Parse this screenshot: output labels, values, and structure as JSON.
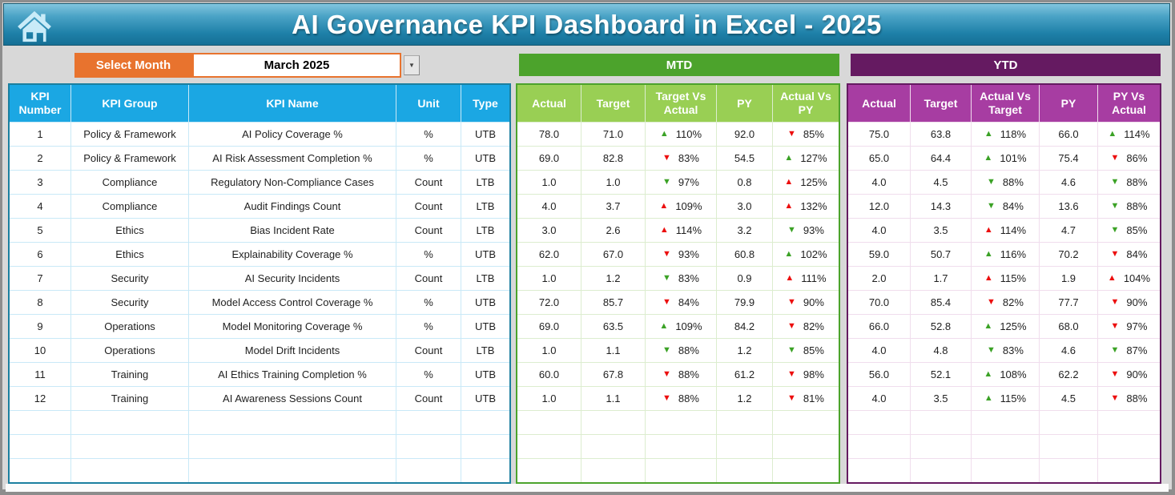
{
  "header": {
    "title": "AI Governance KPI Dashboard in Excel - 2025"
  },
  "controls": {
    "select_month_label": "Select Month",
    "selected_month": "March 2025",
    "dropdown_glyph": "▼"
  },
  "sections": {
    "mtd_label": "MTD",
    "ytd_label": "YTD"
  },
  "kpi_table": {
    "headers": [
      "KPI Number",
      "KPI Group",
      "KPI Name",
      "Unit",
      "Type"
    ]
  },
  "mtd_table": {
    "headers": [
      "Actual",
      "Target",
      "Target Vs Actual",
      "PY",
      "Actual Vs PY"
    ]
  },
  "ytd_table": {
    "headers": [
      "Actual",
      "Target",
      "Actual Vs Target",
      "PY",
      "PY Vs Actual"
    ]
  },
  "empty_row_count": 3,
  "rows": [
    {
      "number": "1",
      "group": "Policy & Framework",
      "name": "AI Policy Coverage %",
      "unit": "%",
      "type": "UTB",
      "mtd": {
        "actual": "78.0",
        "target": "71.0",
        "target_vs_actual": {
          "dir": "up",
          "color": "green",
          "value": "110%"
        },
        "py": "92.0",
        "actual_vs_py": {
          "dir": "down",
          "color": "red",
          "value": "85%"
        }
      },
      "ytd": {
        "actual": "75.0",
        "target": "63.8",
        "actual_vs_target": {
          "dir": "up",
          "color": "green",
          "value": "118%"
        },
        "py": "66.0",
        "py_vs_actual": {
          "dir": "up",
          "color": "green",
          "value": "114%"
        }
      }
    },
    {
      "number": "2",
      "group": "Policy & Framework",
      "name": "AI Risk Assessment Completion %",
      "unit": "%",
      "type": "UTB",
      "mtd": {
        "actual": "69.0",
        "target": "82.8",
        "target_vs_actual": {
          "dir": "down",
          "color": "red",
          "value": "83%"
        },
        "py": "54.5",
        "actual_vs_py": {
          "dir": "up",
          "color": "green",
          "value": "127%"
        }
      },
      "ytd": {
        "actual": "65.0",
        "target": "64.4",
        "actual_vs_target": {
          "dir": "up",
          "color": "green",
          "value": "101%"
        },
        "py": "75.4",
        "py_vs_actual": {
          "dir": "down",
          "color": "red",
          "value": "86%"
        }
      }
    },
    {
      "number": "3",
      "group": "Compliance",
      "name": "Regulatory Non-Compliance Cases",
      "unit": "Count",
      "type": "LTB",
      "mtd": {
        "actual": "1.0",
        "target": "1.0",
        "target_vs_actual": {
          "dir": "down",
          "color": "green",
          "value": "97%"
        },
        "py": "0.8",
        "actual_vs_py": {
          "dir": "up",
          "color": "red",
          "value": "125%"
        }
      },
      "ytd": {
        "actual": "4.0",
        "target": "4.5",
        "actual_vs_target": {
          "dir": "down",
          "color": "green",
          "value": "88%"
        },
        "py": "4.6",
        "py_vs_actual": {
          "dir": "down",
          "color": "green",
          "value": "88%"
        }
      }
    },
    {
      "number": "4",
      "group": "Compliance",
      "name": "Audit Findings Count",
      "unit": "Count",
      "type": "LTB",
      "mtd": {
        "actual": "4.0",
        "target": "3.7",
        "target_vs_actual": {
          "dir": "up",
          "color": "red",
          "value": "109%"
        },
        "py": "3.0",
        "actual_vs_py": {
          "dir": "up",
          "color": "red",
          "value": "132%"
        }
      },
      "ytd": {
        "actual": "12.0",
        "target": "14.3",
        "actual_vs_target": {
          "dir": "down",
          "color": "green",
          "value": "84%"
        },
        "py": "13.6",
        "py_vs_actual": {
          "dir": "down",
          "color": "green",
          "value": "88%"
        }
      }
    },
    {
      "number": "5",
      "group": "Ethics",
      "name": "Bias Incident Rate",
      "unit": "Count",
      "type": "LTB",
      "mtd": {
        "actual": "3.0",
        "target": "2.6",
        "target_vs_actual": {
          "dir": "up",
          "color": "red",
          "value": "114%"
        },
        "py": "3.2",
        "actual_vs_py": {
          "dir": "down",
          "color": "green",
          "value": "93%"
        }
      },
      "ytd": {
        "actual": "4.0",
        "target": "3.5",
        "actual_vs_target": {
          "dir": "up",
          "color": "red",
          "value": "114%"
        },
        "py": "4.7",
        "py_vs_actual": {
          "dir": "down",
          "color": "green",
          "value": "85%"
        }
      }
    },
    {
      "number": "6",
      "group": "Ethics",
      "name": "Explainability Coverage %",
      "unit": "%",
      "type": "UTB",
      "mtd": {
        "actual": "62.0",
        "target": "67.0",
        "target_vs_actual": {
          "dir": "down",
          "color": "red",
          "value": "93%"
        },
        "py": "60.8",
        "actual_vs_py": {
          "dir": "up",
          "color": "green",
          "value": "102%"
        }
      },
      "ytd": {
        "actual": "59.0",
        "target": "50.7",
        "actual_vs_target": {
          "dir": "up",
          "color": "green",
          "value": "116%"
        },
        "py": "70.2",
        "py_vs_actual": {
          "dir": "down",
          "color": "red",
          "value": "84%"
        }
      }
    },
    {
      "number": "7",
      "group": "Security",
      "name": "AI Security Incidents",
      "unit": "Count",
      "type": "LTB",
      "mtd": {
        "actual": "1.0",
        "target": "1.2",
        "target_vs_actual": {
          "dir": "down",
          "color": "green",
          "value": "83%"
        },
        "py": "0.9",
        "actual_vs_py": {
          "dir": "up",
          "color": "red",
          "value": "111%"
        }
      },
      "ytd": {
        "actual": "2.0",
        "target": "1.7",
        "actual_vs_target": {
          "dir": "up",
          "color": "red",
          "value": "115%"
        },
        "py": "1.9",
        "py_vs_actual": {
          "dir": "up",
          "color": "red",
          "value": "104%"
        }
      }
    },
    {
      "number": "8",
      "group": "Security",
      "name": "Model Access Control Coverage %",
      "unit": "%",
      "type": "UTB",
      "mtd": {
        "actual": "72.0",
        "target": "85.7",
        "target_vs_actual": {
          "dir": "down",
          "color": "red",
          "value": "84%"
        },
        "py": "79.9",
        "actual_vs_py": {
          "dir": "down",
          "color": "red",
          "value": "90%"
        }
      },
      "ytd": {
        "actual": "70.0",
        "target": "85.4",
        "actual_vs_target": {
          "dir": "down",
          "color": "red",
          "value": "82%"
        },
        "py": "77.7",
        "py_vs_actual": {
          "dir": "down",
          "color": "red",
          "value": "90%"
        }
      }
    },
    {
      "number": "9",
      "group": "Operations",
      "name": "Model Monitoring Coverage %",
      "unit": "%",
      "type": "UTB",
      "mtd": {
        "actual": "69.0",
        "target": "63.5",
        "target_vs_actual": {
          "dir": "up",
          "color": "green",
          "value": "109%"
        },
        "py": "84.2",
        "actual_vs_py": {
          "dir": "down",
          "color": "red",
          "value": "82%"
        }
      },
      "ytd": {
        "actual": "66.0",
        "target": "52.8",
        "actual_vs_target": {
          "dir": "up",
          "color": "green",
          "value": "125%"
        },
        "py": "68.0",
        "py_vs_actual": {
          "dir": "down",
          "color": "red",
          "value": "97%"
        }
      }
    },
    {
      "number": "10",
      "group": "Operations",
      "name": "Model Drift Incidents",
      "unit": "Count",
      "type": "LTB",
      "mtd": {
        "actual": "1.0",
        "target": "1.1",
        "target_vs_actual": {
          "dir": "down",
          "color": "green",
          "value": "88%"
        },
        "py": "1.2",
        "actual_vs_py": {
          "dir": "down",
          "color": "green",
          "value": "85%"
        }
      },
      "ytd": {
        "actual": "4.0",
        "target": "4.8",
        "actual_vs_target": {
          "dir": "down",
          "color": "green",
          "value": "83%"
        },
        "py": "4.6",
        "py_vs_actual": {
          "dir": "down",
          "color": "green",
          "value": "87%"
        }
      }
    },
    {
      "number": "11",
      "group": "Training",
      "name": "AI Ethics Training Completion %",
      "unit": "%",
      "type": "UTB",
      "mtd": {
        "actual": "60.0",
        "target": "67.8",
        "target_vs_actual": {
          "dir": "down",
          "color": "red",
          "value": "88%"
        },
        "py": "61.2",
        "actual_vs_py": {
          "dir": "down",
          "color": "red",
          "value": "98%"
        }
      },
      "ytd": {
        "actual": "56.0",
        "target": "52.1",
        "actual_vs_target": {
          "dir": "up",
          "color": "green",
          "value": "108%"
        },
        "py": "62.2",
        "py_vs_actual": {
          "dir": "down",
          "color": "red",
          "value": "90%"
        }
      }
    },
    {
      "number": "12",
      "group": "Training",
      "name": "AI Awareness Sessions Count",
      "unit": "Count",
      "type": "UTB",
      "mtd": {
        "actual": "1.0",
        "target": "1.1",
        "target_vs_actual": {
          "dir": "down",
          "color": "red",
          "value": "88%"
        },
        "py": "1.2",
        "actual_vs_py": {
          "dir": "down",
          "color": "red",
          "value": "81%"
        }
      },
      "ytd": {
        "actual": "4.0",
        "target": "3.5",
        "actual_vs_target": {
          "dir": "up",
          "color": "green",
          "value": "115%"
        },
        "py": "4.5",
        "py_vs_actual": {
          "dir": "down",
          "color": "red",
          "value": "88%"
        }
      }
    }
  ],
  "colors": {
    "kpi_blue": "#1BA7E3",
    "kpi_border": "#1B7F9F",
    "kpi_line": "#C9E9F7",
    "mtd_dark": "#4CA32C",
    "mtd_light": "#99CF54",
    "mtd_line": "#DCEDCF",
    "ytd_dark": "#651A61",
    "ytd_mid": "#A73DA2",
    "ytd_line": "#F0DDED",
    "orange": "#E8732E",
    "tri_green": "#3BA226",
    "tri_red": "#EC0F0F",
    "header_grad_top": "#82C5DE",
    "header_grad_bottom": "#156F95",
    "home_icon": "#C9EBF8"
  }
}
